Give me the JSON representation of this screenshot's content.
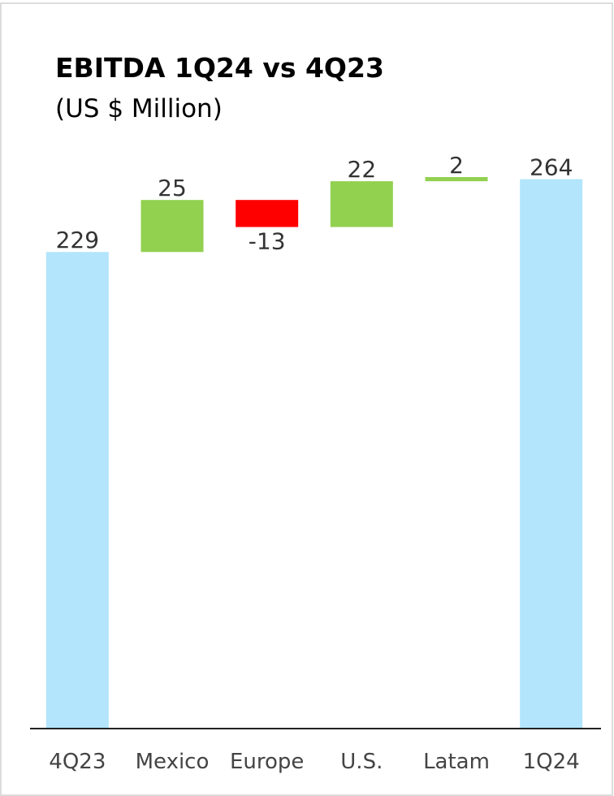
{
  "chart_data": {
    "type": "waterfall",
    "title": "EBITDA 1Q24 vs 4Q23",
    "subtitle": "(US $ Million)",
    "categories": [
      "4Q23",
      "Mexico",
      "Europe",
      "U.S.",
      "Latam",
      "1Q24"
    ],
    "values": [
      229,
      25,
      -13,
      22,
      2,
      264
    ],
    "is_total": [
      true,
      false,
      false,
      false,
      false,
      true
    ],
    "colors": [
      "#b3e5fc",
      "#92d050",
      "#ff0000",
      "#92d050",
      "#92d050",
      "#b3e5fc"
    ]
  }
}
